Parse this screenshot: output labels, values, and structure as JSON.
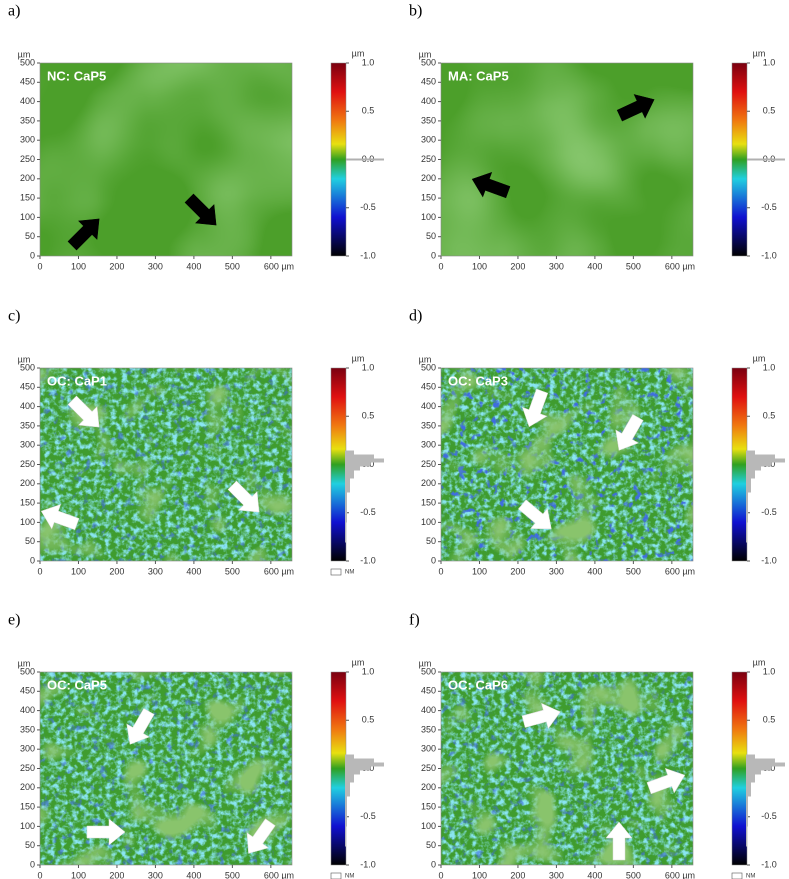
{
  "figure": {
    "axis_unit": "µm",
    "colorbar_unit": "µm",
    "xlim": [
      0,
      655
    ],
    "ylim": [
      0,
      500
    ],
    "xticks": [
      0,
      100,
      200,
      300,
      400,
      500,
      {
        "value": 600,
        "label": "600 µm"
      }
    ],
    "yticks": [
      0,
      50,
      100,
      150,
      200,
      250,
      300,
      350,
      400,
      450,
      500
    ],
    "cblim": [
      -1,
      1
    ],
    "cbticks": [
      {
        "value": 1,
        "label": "1.0"
      },
      0.5,
      {
        "value": 0,
        "label": "0.0"
      },
      -0.5,
      {
        "value": -1,
        "label": "-1.0"
      }
    ],
    "panels": [
      {
        "label": "a)",
        "title": "NC: CaP5"
      },
      {
        "label": "b)",
        "title": "MA: CaP5"
      },
      {
        "label": "c)",
        "title": "OC: CaP1",
        "legend": "NM"
      },
      {
        "label": "d)",
        "title": "OC: CaP3"
      },
      {
        "label": "e)",
        "title": "OC: CaP5",
        "legend": "NM"
      },
      {
        "label": "f)",
        "title": "OC: CaP6",
        "legend": "NM"
      }
    ]
  }
}
